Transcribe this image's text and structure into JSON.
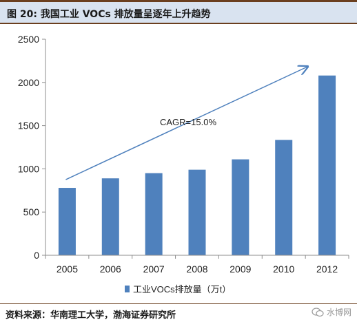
{
  "header": {
    "title": "图 20:  我国工业 VOCs 排放量呈逐年上升趋势"
  },
  "footer": {
    "source": "资料来源：华南理工大学，渤海证券研究所",
    "watermark": "水博网"
  },
  "chart_data": {
    "type": "bar",
    "categories": [
      "2005",
      "2006",
      "2007",
      "2008",
      "2009",
      "2010",
      "2012"
    ],
    "series": [
      {
        "name": "工业VOCs排放量（万t）",
        "values": [
          780,
          890,
          950,
          990,
          1110,
          1335,
          2080
        ]
      }
    ],
    "ylim": [
      0,
      2500
    ],
    "yticks": [
      0,
      500,
      1000,
      1500,
      2000,
      2500
    ],
    "grid": false,
    "legend_position": "bottom",
    "annotation": {
      "text": "CAGR=15.0%"
    },
    "colors": {
      "bar": "#4f81bd",
      "arrow": "#4f81bd"
    }
  }
}
